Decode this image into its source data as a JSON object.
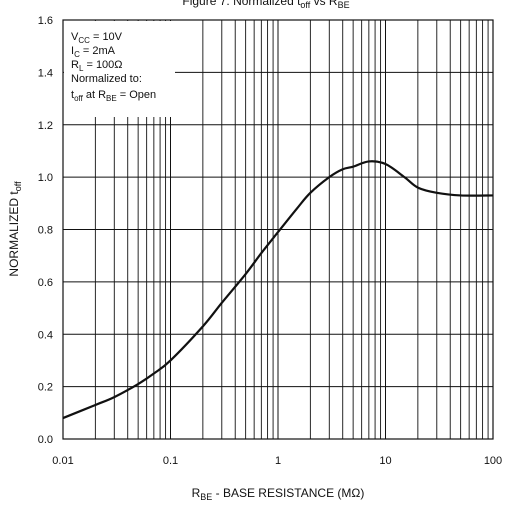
{
  "chart_data": {
    "type": "line",
    "title": "Figure 7. Normalized t",
    "title_sub": "off",
    "title_mid": " vs R",
    "title_sub2": "BE",
    "xlabel_main": "R",
    "xlabel_sub": "BE",
    "xlabel_rest": " - BASE RESISTANCE (MΩ)",
    "ylabel_main": "NORMALIZED t",
    "ylabel_sub": "off",
    "x_scale": "log",
    "xlim": [
      0.01,
      100
    ],
    "ylim": [
      0.0,
      1.6
    ],
    "x_tick_labels": [
      "0.01",
      "0.1",
      "1",
      "10",
      "100"
    ],
    "y_tick_labels": [
      "0.0",
      "0.2",
      "0.4",
      "0.6",
      "0.8",
      "1.0",
      "1.2",
      "1.4",
      "1.6"
    ],
    "grid": true,
    "legend": "none",
    "line_color": "#111111",
    "series": [
      {
        "x": [
          0.01,
          0.02,
          0.03,
          0.05,
          0.07,
          0.1,
          0.2,
          0.3,
          0.5,
          0.7,
          1,
          1.5,
          2,
          3,
          4,
          5,
          7,
          10,
          15,
          20,
          30,
          50,
          100
        ],
        "y": [
          0.08,
          0.13,
          0.16,
          0.21,
          0.25,
          0.3,
          0.43,
          0.52,
          0.63,
          0.71,
          0.79,
          0.88,
          0.94,
          1.0,
          1.03,
          1.04,
          1.06,
          1.05,
          1.0,
          0.96,
          0.94,
          0.93,
          0.93
        ]
      }
    ]
  },
  "annotation": {
    "line1_main": "V",
    "line1_sub": "CC",
    "line1_rest": " = 10V",
    "line2_main": "I",
    "line2_sub": "C",
    "line2_rest": " = 2mA",
    "line3_main": "R",
    "line3_sub": "L",
    "line3_rest": " = 100Ω",
    "line4": "Normalized to:",
    "line5_a": "t",
    "line5_sub1": "off",
    "line5_b": " at R",
    "line5_sub2": "BE",
    "line5_c": " = Open"
  }
}
